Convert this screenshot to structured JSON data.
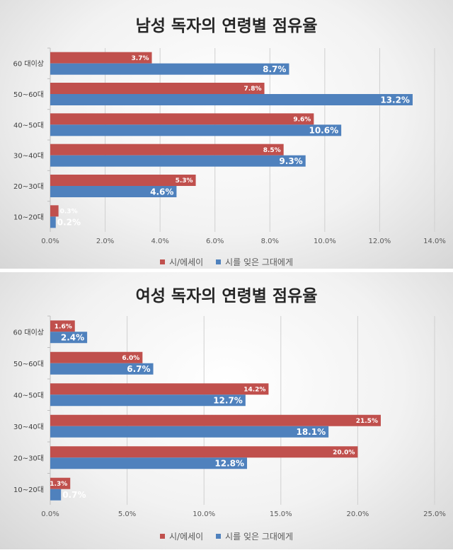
{
  "chart_data": [
    {
      "type": "bar",
      "title": "남성 독자의 연령별 점유율",
      "orientation": "horizontal",
      "categories": [
        "60 대이상",
        "50~60대",
        "40~50대",
        "30~40대",
        "20~30대",
        "10~20대"
      ],
      "series": [
        {
          "name": "시/에세이",
          "color": "#c0504d",
          "values": [
            3.7,
            7.8,
            9.6,
            8.5,
            5.3,
            0.3
          ],
          "labels": [
            "3.7%",
            "7.8%",
            "9.6%",
            "8.5%",
            "5.3%",
            "0.3%"
          ]
        },
        {
          "name": "시를 잊은 그대에게",
          "color": "#4f81bd",
          "values": [
            8.7,
            13.2,
            10.6,
            9.3,
            4.6,
            0.2
          ],
          "labels": [
            "8.7%",
            "13.2%",
            "10.6%",
            "9.3%",
            "4.6%",
            "0.2%"
          ]
        }
      ],
      "xlim": [
        0,
        14
      ],
      "xticks": [
        0,
        2,
        4,
        6,
        8,
        10,
        12,
        14
      ],
      "xtick_labels": [
        "0.0%",
        "2.0%",
        "4.0%",
        "6.0%",
        "8.0%",
        "10.0%",
        "12.0%",
        "14.0%"
      ],
      "grid": true,
      "legend_position": "bottom"
    },
    {
      "type": "bar",
      "title": "여성 독자의 연령별 점유율",
      "orientation": "horizontal",
      "categories": [
        "60 대이상",
        "50~60대",
        "40~50대",
        "30~40대",
        "20~30대",
        "10~20대"
      ],
      "series": [
        {
          "name": "시/에세이",
          "color": "#c0504d",
          "values": [
            1.6,
            6.0,
            14.2,
            21.5,
            20.0,
            1.3
          ],
          "labels": [
            "1.6%",
            "6.0%",
            "14.2%",
            "21.5%",
            "20.0%",
            "1.3%"
          ]
        },
        {
          "name": "시를 잊은 그대에게",
          "color": "#4f81bd",
          "values": [
            2.4,
            6.7,
            12.7,
            18.1,
            12.8,
            0.7
          ],
          "labels": [
            "2.4%",
            "6.7%",
            "12.7%",
            "18.1%",
            "12.8%",
            "0.7%"
          ]
        }
      ],
      "xlim": [
        0,
        25
      ],
      "xticks": [
        0,
        5,
        10,
        15,
        20,
        25
      ],
      "xtick_labels": [
        "0.0%",
        "5.0%",
        "10.0%",
        "15.0%",
        "20.0%",
        "25.0%"
      ],
      "grid": true,
      "legend_position": "bottom"
    }
  ]
}
